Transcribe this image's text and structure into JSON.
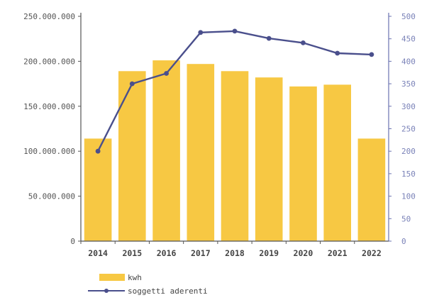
{
  "chart_data": {
    "type": "bar",
    "categories": [
      "2014",
      "2015",
      "2016",
      "2017",
      "2018",
      "2019",
      "2020",
      "2021",
      "2022"
    ],
    "series": [
      {
        "name": "kwh",
        "type": "bar",
        "axis": "left",
        "color": "#f7c843",
        "values": [
          114000000,
          189000000,
          201000000,
          197000000,
          189000000,
          182000000,
          172000000,
          174000000,
          114000000
        ]
      },
      {
        "name": "soggetti aderenti",
        "type": "line",
        "axis": "right",
        "color": "#4a4f8c",
        "values": [
          200,
          350,
          373,
          464,
          467,
          451,
          441,
          418,
          415
        ]
      }
    ],
    "ylim_left": [
      0,
      250000000
    ],
    "yticks_left": [
      "0",
      "50.000.000",
      "100.000.000",
      "150.000.000",
      "200.000.000",
      "250.000.000"
    ],
    "ylim_right": [
      0,
      500
    ],
    "yticks_right": [
      "0",
      "50",
      "100",
      "150",
      "200",
      "250",
      "300",
      "350",
      "400",
      "450",
      "500"
    ],
    "legend_position": "bottom-left",
    "grid": false
  }
}
